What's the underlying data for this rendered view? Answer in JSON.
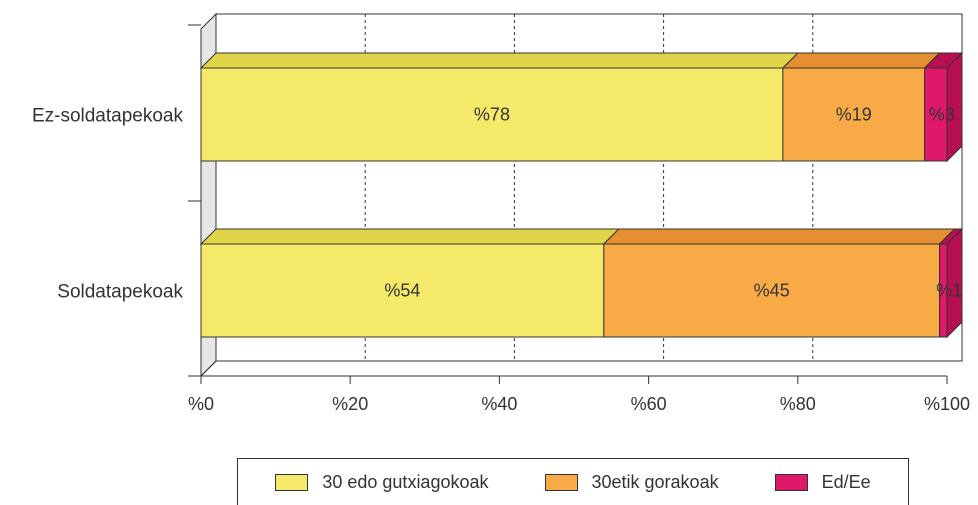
{
  "chart_data": {
    "type": "bar",
    "orientation": "horizontal",
    "stacked": true,
    "categories": [
      "Ez-soldatapekoak",
      "Soldatapekoak"
    ],
    "series": [
      {
        "name": "30 edo gutxiagokoak",
        "color": "#f5e96a",
        "top_color": "#e0d548",
        "values": [
          78,
          54
        ],
        "labels": [
          "%78",
          "%54"
        ]
      },
      {
        "name": "30etik gorakoak",
        "color": "#f7aa45",
        "top_color": "#e68f30",
        "values": [
          19,
          45
        ],
        "labels": [
          "%19",
          "%45"
        ]
      },
      {
        "name": "Ed/Ee",
        "color": "#e0186a",
        "top_color": "#b80f52",
        "values": [
          3,
          1
        ],
        "labels": [
          "%3",
          "%1"
        ]
      }
    ],
    "x_ticks": [
      "%0",
      "%20",
      "%40",
      "%60",
      "%80",
      "%100"
    ],
    "xlim": [
      0,
      100
    ],
    "grid": "vertical-dashed",
    "legend_position": "bottom"
  }
}
